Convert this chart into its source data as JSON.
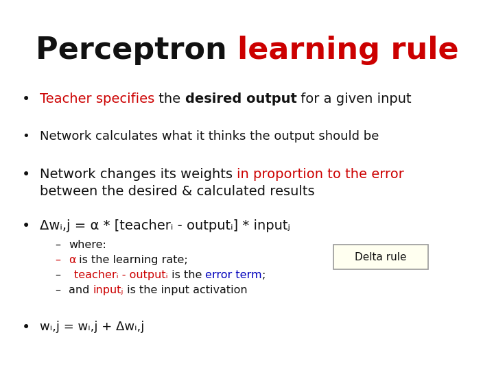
{
  "title_black": "Perceptron ",
  "title_red": "learning rule",
  "bg_color": "#ffffff",
  "title_fontsize": 32,
  "bullet_fs": 14,
  "sub_fs": 11.5,
  "red": "#cc0000",
  "blue": "#0000bb",
  "black": "#111111",
  "box_bg": "#fffff0",
  "box_edge": "#999999",
  "delta_box_text": "Delta rule"
}
